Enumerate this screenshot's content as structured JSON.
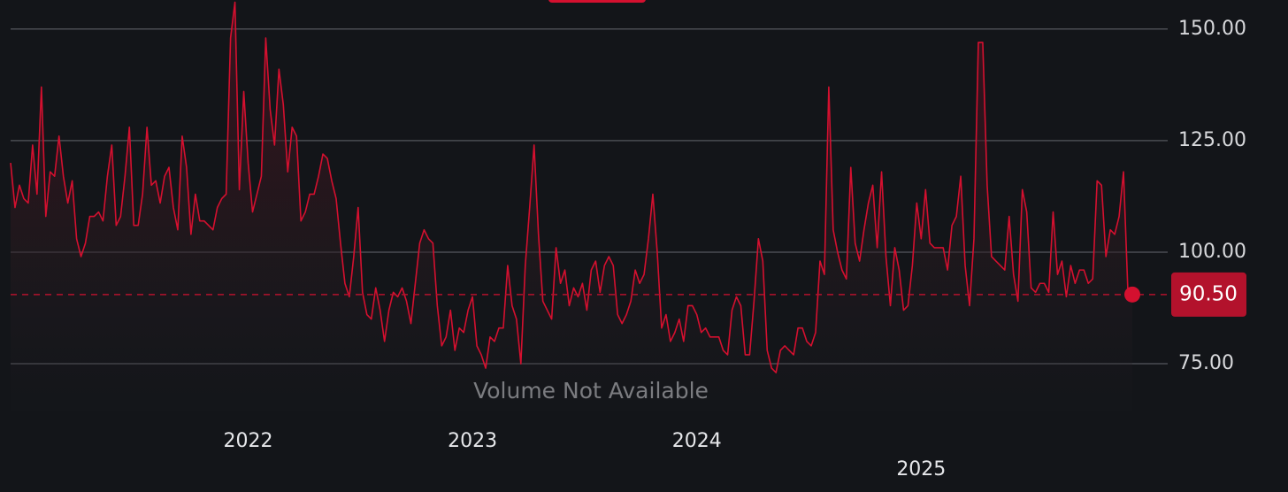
{
  "chart_data": {
    "type": "line",
    "color": "#d4102f",
    "values": [
      120,
      110,
      115,
      112,
      111,
      124,
      113,
      137,
      108,
      118,
      117,
      126,
      117,
      111,
      116,
      103,
      99,
      102,
      108,
      108,
      109,
      107,
      117,
      124,
      106,
      108,
      117,
      128,
      106,
      106,
      113,
      128,
      115,
      116,
      111,
      117,
      119,
      110,
      105,
      126,
      119,
      104,
      113,
      107,
      107,
      106,
      105,
      110,
      112,
      113,
      148,
      156,
      114,
      136,
      120,
      109,
      113,
      117,
      148,
      132,
      124,
      141,
      133,
      118,
      128,
      126,
      107,
      109,
      113,
      113,
      117,
      122,
      121,
      116,
      112,
      102,
      93,
      90,
      99,
      110,
      91,
      86,
      85,
      92,
      87,
      80,
      87,
      91,
      90,
      92,
      89,
      84,
      93,
      102,
      105,
      103,
      102,
      88,
      79,
      81,
      87,
      78,
      83,
      82,
      87,
      90,
      79,
      77,
      74,
      81,
      80,
      83,
      83,
      97,
      88,
      85,
      75,
      97,
      110,
      124,
      104,
      89,
      87,
      85,
      101,
      93,
      96,
      88,
      92,
      90,
      93,
      87,
      96,
      98,
      91,
      97,
      99,
      97,
      86,
      84,
      86,
      89,
      96,
      93,
      95,
      103,
      113,
      100,
      83,
      86,
      80,
      82,
      85,
      80,
      88,
      88,
      86,
      82,
      83,
      81,
      81,
      81,
      78,
      77,
      87,
      90,
      88,
      77,
      77,
      89,
      103,
      98,
      78,
      74,
      73,
      78,
      79,
      78,
      77,
      83,
      83,
      80,
      79,
      82,
      98,
      95,
      137,
      105,
      100,
      96,
      94,
      119,
      102,
      98,
      105,
      111,
      115,
      101,
      118,
      99,
      88,
      101,
      96,
      87,
      88,
      97,
      111,
      103,
      114,
      102,
      101,
      101,
      101,
      96,
      106,
      108,
      117,
      97,
      88,
      103,
      147,
      147,
      115,
      99,
      98,
      97,
      96,
      108,
      95,
      89,
      114,
      109,
      92,
      91,
      93,
      93,
      91,
      109,
      95,
      98,
      90,
      97,
      93,
      96,
      96,
      93,
      94,
      116,
      115,
      99,
      105,
      104,
      108,
      118,
      91,
      90.5
    ],
    "xlim": [
      0,
      255
    ],
    "xticks": [
      {
        "value": 54,
        "label": "2022"
      },
      {
        "value": 105,
        "label": "2023"
      },
      {
        "value": 156,
        "label": "2024"
      },
      {
        "value": 207,
        "label": "2025"
      }
    ],
    "ylim": [
      64.3,
      156.5
    ],
    "yticks": [
      {
        "value": 75,
        "label": "75.00"
      },
      {
        "value": 100,
        "label": "100.00"
      },
      {
        "value": 125,
        "label": "125.00"
      },
      {
        "value": 150,
        "label": "150.00"
      }
    ],
    "grid": true,
    "reference_line": {
      "value": 90.5,
      "label": "90.50"
    },
    "annotation": "Volume Not Available"
  }
}
